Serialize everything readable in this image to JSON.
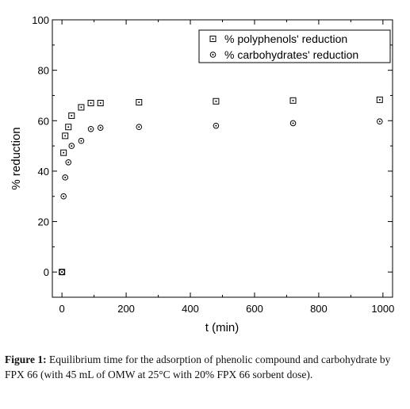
{
  "chart_data": {
    "type": "scatter",
    "xlabel": "t (min)",
    "ylabel": "% reduction",
    "xlim": [
      -30,
      1030
    ],
    "ylim": [
      -10,
      100
    ],
    "xticks": [
      0,
      200,
      400,
      600,
      800,
      1000
    ],
    "yticks": [
      0,
      20,
      40,
      60,
      80,
      100
    ],
    "legend_position": "top-right",
    "series": [
      {
        "name": "% polyphenols' reduction",
        "marker": "square-dot",
        "x": [
          0,
          5,
          10,
          20,
          30,
          60,
          90,
          120,
          240,
          480,
          720,
          990
        ],
        "y": [
          0,
          47.3,
          54,
          57.5,
          62,
          65.3,
          67,
          67,
          67.3,
          67.7,
          68,
          68.3
        ]
      },
      {
        "name": "% carbohydrates' reduction",
        "marker": "circle-dot",
        "x": [
          0,
          5,
          10,
          20,
          30,
          60,
          90,
          120,
          240,
          480,
          720,
          990
        ],
        "y": [
          0,
          30,
          37.5,
          43.5,
          50,
          52,
          56.7,
          57.2,
          57.5,
          58,
          59,
          59.7
        ]
      }
    ]
  },
  "caption": {
    "label": "Figure 1:",
    "text": " Equilibrium time for the adsorption of phenolic compound and carbohydrate by FPX 66 (with 45 mL of OMW at 25°C with 20% FPX 66 sorbent dose)."
  }
}
